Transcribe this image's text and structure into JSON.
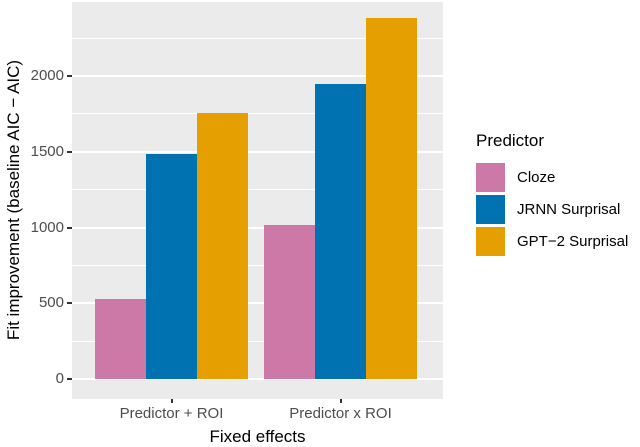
{
  "chart_data": {
    "type": "bar",
    "title": "",
    "categories": [
      "Predictor + ROI",
      "Predictor x ROI"
    ],
    "series": [
      {
        "name": "Cloze",
        "color": "#CC79A7",
        "values": [
          530,
          1015
        ]
      },
      {
        "name": "JRNN Surprisal",
        "color": "#0072B2",
        "values": [
          1485,
          1950
        ]
      },
      {
        "name": "GPT−2 Surprisal",
        "color": "#E69F00",
        "values": [
          1755,
          2385
        ]
      }
    ],
    "xlabel": "Fixed effects",
    "ylabel": "Fit improvement (baseline AIC − AIC)",
    "yticks": [
      0,
      500,
      1000,
      1500,
      2000
    ],
    "ytick_labels": [
      "0",
      "500",
      "1000",
      "1500",
      "2000"
    ],
    "ylim": [
      0,
      2500
    ],
    "grid": true,
    "legend_title": "Predictor",
    "legend_position": "right",
    "colors": {
      "panel_background": "#EBEBEB",
      "gridline": "#FFFFFF",
      "tick_text": "#4D4D4D",
      "tick_mark": "#333333",
      "axis_title_text": "#000000"
    }
  }
}
